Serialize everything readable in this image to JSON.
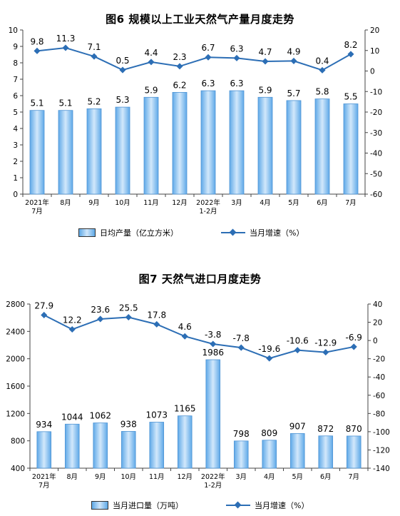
{
  "colors": {
    "bar_fill": "#a9d2f5",
    "bar_edge": "#4f94d4",
    "line": "#2c6eb5",
    "axis": "#444444"
  },
  "chart_data": [
    {
      "type": "bar+line",
      "title": "图6  规模以上工业天然气产量月度走势",
      "categories": [
        "2021年\n7月",
        "8月",
        "9月",
        "10月",
        "11月",
        "12月",
        "2022年\n1-2月",
        "3月",
        "4月",
        "5月",
        "6月",
        "7月"
      ],
      "series": [
        {
          "name": "日均产量（亿立方米）",
          "type": "bar",
          "axis": "left",
          "values": [
            5.1,
            5.1,
            5.2,
            5.3,
            5.9,
            6.2,
            6.3,
            6.3,
            5.9,
            5.7,
            5.8,
            5.5
          ]
        },
        {
          "name": "当月增速（%）",
          "type": "line",
          "axis": "right",
          "values": [
            9.8,
            11.3,
            7.1,
            0.5,
            4.4,
            2.3,
            6.7,
            6.3,
            4.7,
            4.9,
            0.4,
            8.2
          ]
        }
      ],
      "y_left": {
        "min": 0,
        "max": 10,
        "ticks": [
          0,
          1,
          2,
          3,
          4,
          5,
          6,
          7,
          8,
          9,
          10
        ]
      },
      "y_right": {
        "min": -60,
        "max": 20,
        "ticks": [
          -60,
          -50,
          -40,
          -30,
          -20,
          -10,
          0,
          10,
          20
        ]
      },
      "legend_position": "bottom"
    },
    {
      "type": "bar+line",
      "title": "图7  天然气进口月度走势",
      "categories": [
        "2021年\n7月",
        "8月",
        "9月",
        "10月",
        "11月",
        "12月",
        "2022年\n1-2月",
        "3月",
        "4月",
        "5月",
        "6月",
        "7月"
      ],
      "series": [
        {
          "name": "当月进口量（万吨）",
          "type": "bar",
          "axis": "left",
          "values": [
            934,
            1044,
            1062,
            938,
            1073,
            1165,
            1986,
            798,
            809,
            907,
            872,
            870
          ]
        },
        {
          "name": "当月增速（%）",
          "type": "line",
          "axis": "right",
          "values": [
            27.9,
            12.2,
            23.6,
            25.5,
            17.8,
            4.6,
            -3.8,
            -7.8,
            -19.6,
            -10.6,
            -12.9,
            -6.9
          ]
        }
      ],
      "y_left": {
        "min": 400,
        "max": 2800,
        "ticks": [
          400,
          800,
          1200,
          1600,
          2000,
          2400,
          2800
        ]
      },
      "y_right": {
        "min": -140,
        "max": 40,
        "ticks": [
          -140,
          -120,
          -100,
          -80,
          -60,
          -40,
          -20,
          0,
          20,
          40
        ]
      },
      "legend_position": "bottom"
    }
  ]
}
